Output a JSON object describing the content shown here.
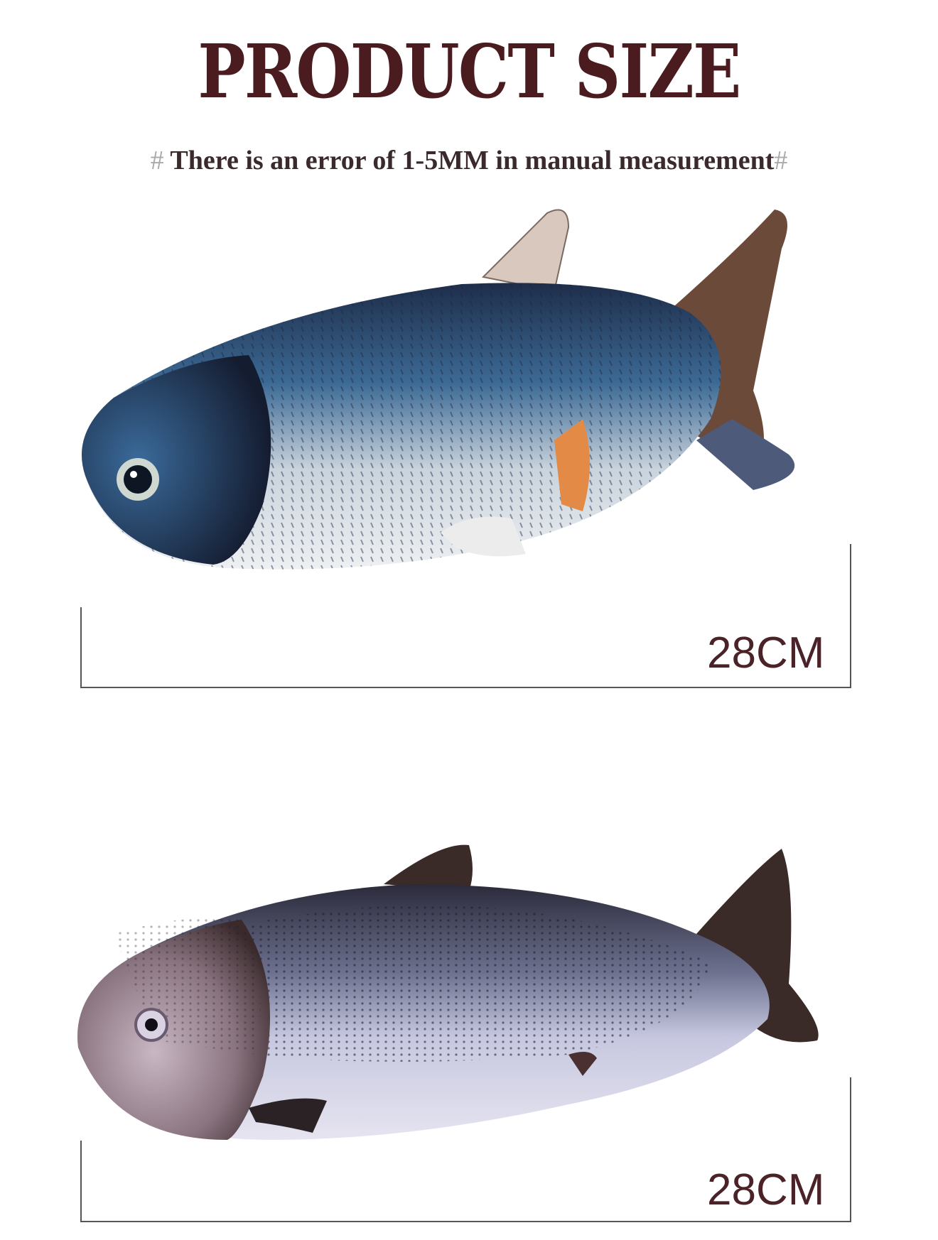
{
  "header": {
    "title": "PRODUCT SIZE",
    "note_prefix": "#",
    "note": "There is an error of 1-5MM in manual measurement",
    "note_suffix": "#"
  },
  "products": [
    {
      "size_label": "28CM",
      "icon": "grass-carp-fish-image"
    },
    {
      "size_label": "28CM",
      "icon": "salmon-fish-image"
    }
  ],
  "colors": {
    "title": "#4a1c20",
    "size_label": "#4a2228",
    "bracket": "#555555"
  }
}
